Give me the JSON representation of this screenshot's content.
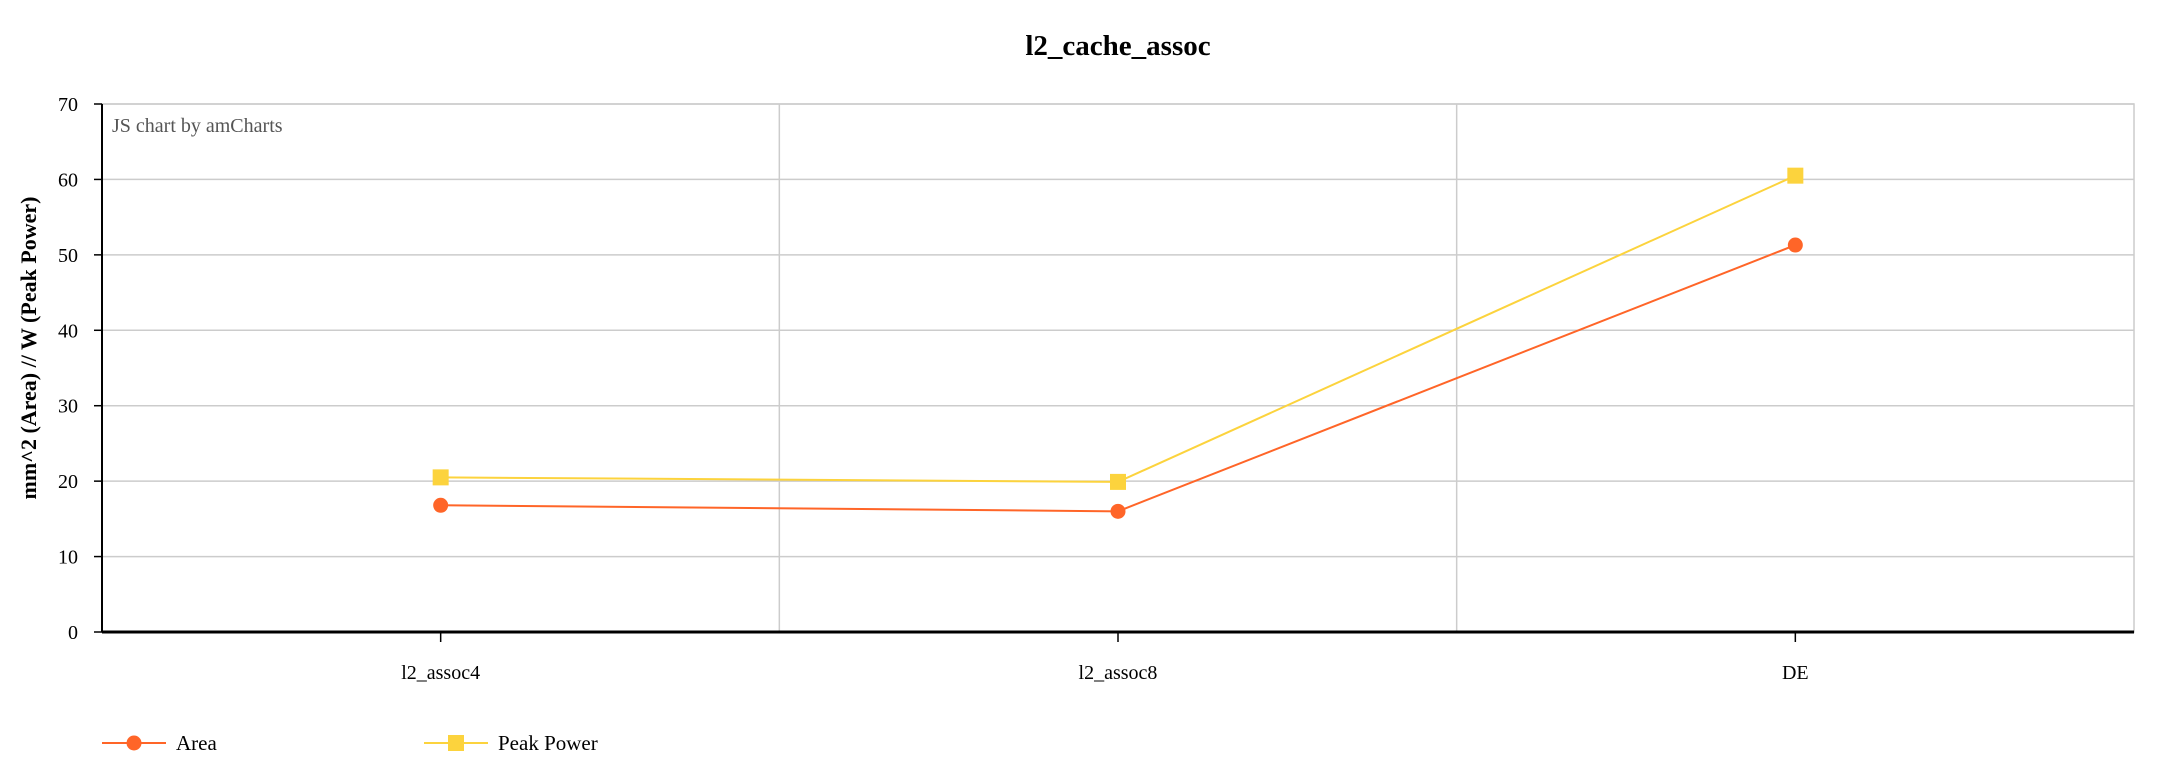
{
  "chart_data": {
    "type": "line",
    "title": "l2_cache_assoc",
    "xlabel": "",
    "ylabel": "mm^2 (Area) // W (Peak Power)",
    "categories": [
      "l2_assoc4",
      "l2_assoc8",
      "DE"
    ],
    "ylim": [
      0,
      70
    ],
    "yticks": [
      0,
      10,
      20,
      30,
      40,
      50,
      60,
      70
    ],
    "grid": true,
    "legend_position": "bottom-left",
    "credit": "JS chart by amCharts",
    "series": [
      {
        "name": "Area",
        "color": "#FF6528",
        "marker": "circle",
        "values": [
          16.8,
          16.0,
          51.3
        ]
      },
      {
        "name": "Peak Power",
        "color": "#FCD33D",
        "marker": "square",
        "values": [
          20.5,
          19.9,
          60.5
        ]
      }
    ]
  }
}
